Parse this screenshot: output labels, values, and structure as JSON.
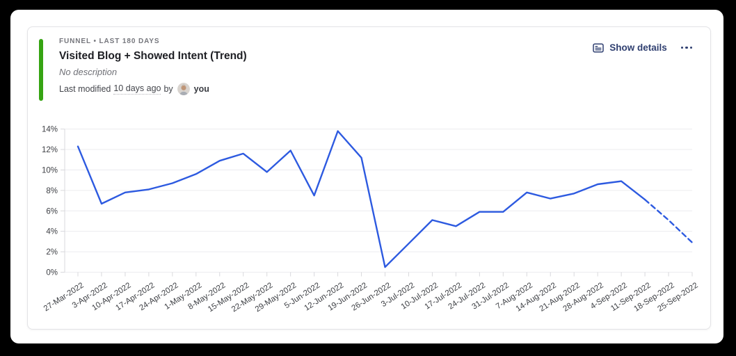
{
  "window": {
    "outer_background": "#000000",
    "page_background": "#ffffff"
  },
  "card": {
    "accent_color": "#36a413",
    "kicker": "FUNNEL • LAST 180 DAYS",
    "title": "Visited Blog + Showed Intent (Trend)",
    "description": "No description",
    "modified": {
      "prefix": "Last modified",
      "time": "10 days ago",
      "connector": "by",
      "author": "you"
    },
    "actions": {
      "show_details_label": "Show details",
      "show_details_icon": "details-panel-icon",
      "more_icon": "ellipsis-icon"
    },
    "avatar_icon": "user-avatar"
  },
  "chart_data": {
    "type": "line",
    "title": "Visited Blog + Showed Intent (Trend)",
    "xlabel": "",
    "ylabel": "",
    "unit": "%",
    "grid": true,
    "legend": "none",
    "ylim": [
      0,
      14
    ],
    "y_tick_labels": [
      "0%",
      "2%",
      "4%",
      "6%",
      "8%",
      "10%",
      "12%",
      "14%"
    ],
    "x_labels": [
      "27-Mar-2022",
      "3-Apr-2022",
      "10-Apr-2022",
      "17-Apr-2022",
      "24-Apr-2022",
      "1-May-2022",
      "8-May-2022",
      "15-May-2022",
      "22-May-2022",
      "29-May-2022",
      "5-Jun-2022",
      "12-Jun-2022",
      "19-Jun-2022",
      "26-Jun-2022",
      "3-Jul-2022",
      "10-Jul-2022",
      "17-Jul-2022",
      "24-Jul-2022",
      "31-Jul-2022",
      "7-Aug-2022",
      "14-Aug-2022",
      "21-Aug-2022",
      "28-Aug-2022",
      "4-Sep-2022",
      "11-Sep-2022",
      "18-Sep-2022",
      "25-Sep-2022"
    ],
    "values": [
      12.3,
      6.7,
      7.8,
      8.1,
      8.7,
      9.6,
      10.9,
      11.6,
      9.8,
      11.9,
      7.5,
      13.8,
      11.2,
      0.5,
      2.8,
      5.1,
      4.5,
      5.9,
      5.9,
      7.8,
      7.2,
      7.7,
      8.6,
      8.9,
      7.1,
      5.1,
      2.9
    ],
    "dashed_from_index": 24,
    "line_color": "#2d5ae0",
    "grid_color": "#ececef",
    "axis_color": "#d8d8dc",
    "tick_label_color": "#3e4045"
  }
}
